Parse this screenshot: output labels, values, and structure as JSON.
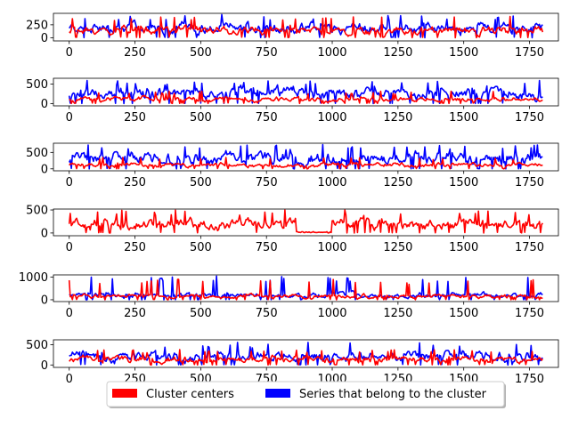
{
  "chart_data": [
    {
      "type": "line",
      "xlim": [
        -60,
        1860
      ],
      "ylim": [
        -60,
        470
      ],
      "xticks": [
        0,
        250,
        500,
        750,
        1000,
        1250,
        1500,
        1750
      ],
      "yticks": [
        0,
        250
      ],
      "series": [
        {
          "role": "members",
          "color": "#0000ff",
          "x_range": [
            0,
            1800
          ],
          "min": 0,
          "max": 450,
          "typical": 180
        },
        {
          "role": "center",
          "color": "#ff0000",
          "x_range": [
            0,
            1800
          ],
          "min": 0,
          "max": 420,
          "typical": 140
        }
      ]
    },
    {
      "type": "line",
      "xlim": [
        -60,
        1860
      ],
      "ylim": [
        -60,
        650
      ],
      "xticks": [
        0,
        250,
        500,
        750,
        1000,
        1250,
        1500,
        1750
      ],
      "yticks": [
        0,
        500
      ],
      "series": [
        {
          "role": "members",
          "color": "#0000ff",
          "x_range": [
            0,
            1800
          ],
          "min": 0,
          "max": 600,
          "typical": 280
        },
        {
          "role": "center",
          "color": "#ff0000",
          "x_range": [
            0,
            1800
          ],
          "min": 0,
          "max": 320,
          "typical": 110
        }
      ]
    },
    {
      "type": "line",
      "xlim": [
        -60,
        1860
      ],
      "ylim": [
        -60,
        780
      ],
      "xticks": [
        0,
        250,
        500,
        750,
        1000,
        1250,
        1500,
        1750
      ],
      "yticks": [
        0,
        500
      ],
      "series": [
        {
          "role": "members",
          "color": "#0000ff",
          "x_range": [
            0,
            1800
          ],
          "min": 0,
          "max": 740,
          "typical": 320
        },
        {
          "role": "center",
          "color": "#ff0000",
          "x_range": [
            0,
            1800
          ],
          "min": 0,
          "max": 350,
          "typical": 120
        }
      ]
    },
    {
      "type": "line",
      "xlim": [
        -60,
        1860
      ],
      "ylim": [
        -60,
        520
      ],
      "xticks": [
        0,
        250,
        500,
        750,
        1000,
        1250,
        1500,
        1750
      ],
      "yticks": [
        0,
        500
      ],
      "series": [
        {
          "role": "center",
          "color": "#ff0000",
          "x_range": [
            0,
            1800
          ],
          "min": 0,
          "max": 500,
          "typical": 200,
          "gaps": [
            [
              860,
              1000
            ]
          ]
        }
      ]
    },
    {
      "type": "line",
      "xlim": [
        -60,
        1860
      ],
      "ylim": [
        -80,
        1100
      ],
      "xticks": [
        0,
        250,
        500,
        750,
        1000,
        1250,
        1500,
        1750
      ],
      "yticks": [
        0,
        1000
      ],
      "series": [
        {
          "role": "members",
          "color": "#0000ff",
          "x_range": [
            0,
            1800
          ],
          "min": 0,
          "max": 1050,
          "typical": 200,
          "spikes": [
            [
              350,
              950
            ],
            [
              560,
              1050
            ]
          ]
        },
        {
          "role": "center",
          "color": "#ff0000",
          "x_range": [
            0,
            1800
          ],
          "min": 0,
          "max": 900,
          "typical": 150,
          "spikes": [
            [
              415,
              900
            ]
          ]
        }
      ]
    },
    {
      "type": "line",
      "xlim": [
        -60,
        1860
      ],
      "ylim": [
        -60,
        620
      ],
      "xticks": [
        0,
        250,
        500,
        750,
        1000,
        1250,
        1500,
        1750
      ],
      "yticks": [
        0,
        500
      ],
      "series": [
        {
          "role": "members",
          "color": "#0000ff",
          "x_range": [
            0,
            1800
          ],
          "min": 0,
          "max": 560,
          "typical": 220
        },
        {
          "role": "center",
          "color": "#ff0000",
          "x_range": [
            0,
            1800
          ],
          "min": 0,
          "max": 380,
          "typical": 140
        }
      ]
    }
  ],
  "legend": {
    "placement": "bottom-center",
    "entries": [
      {
        "label": "Cluster centers",
        "color": "#ff0000"
      },
      {
        "label": "Series that belong to the cluster",
        "color": "#0000ff"
      }
    ]
  }
}
